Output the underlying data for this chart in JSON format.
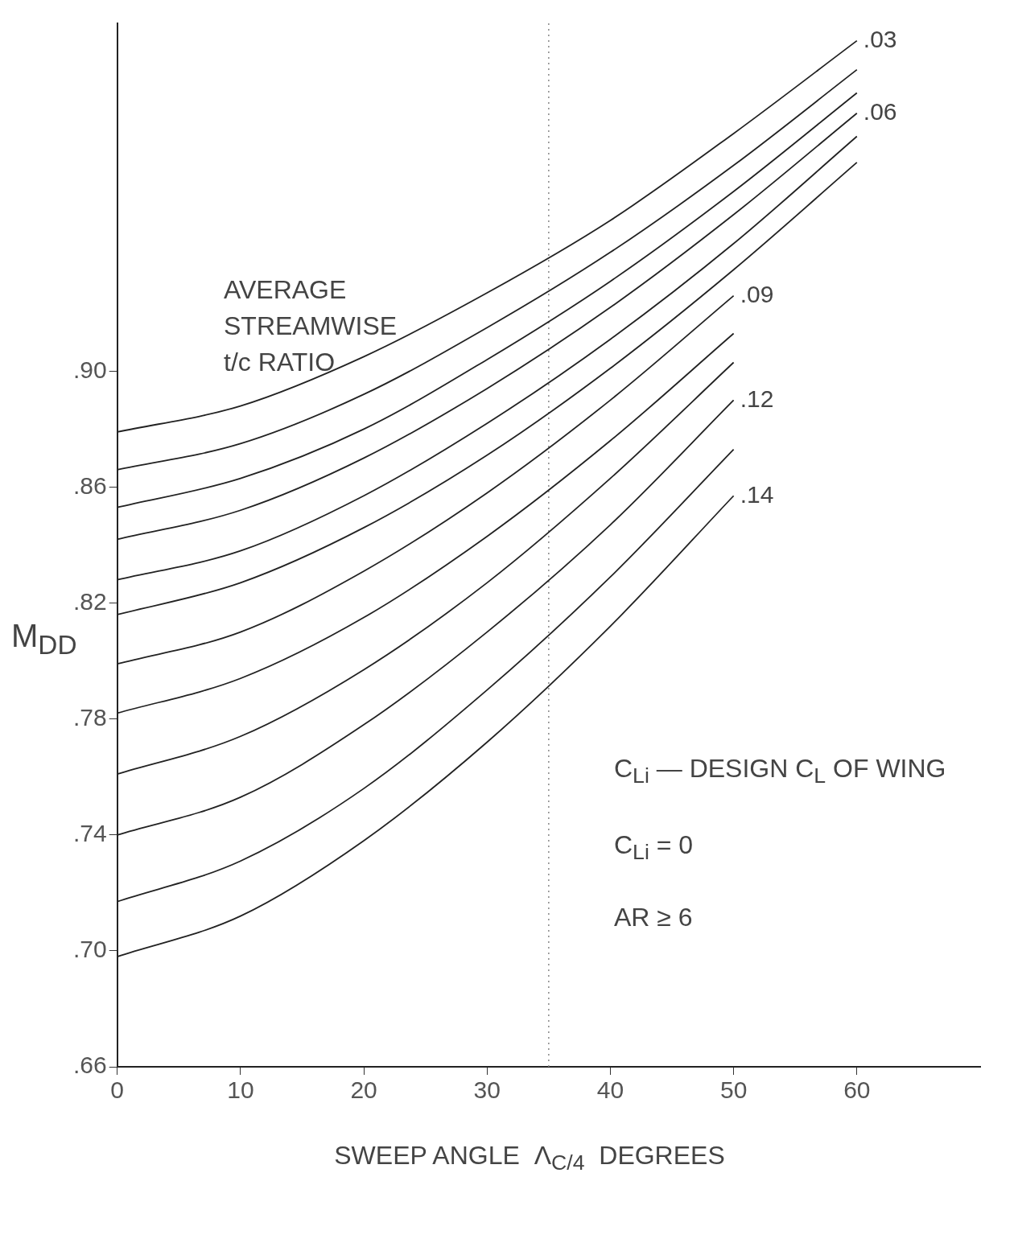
{
  "chart_data": {
    "type": "line",
    "xlabel": "SWEEP ANGLE  Λ$_{C/4}$  DEGREES",
    "ylabel": "M$_{DD}$",
    "x": [
      0,
      10,
      20,
      30,
      40,
      50,
      60
    ],
    "xlim": [
      0,
      70
    ],
    "xticks": [
      0,
      10,
      20,
      30,
      40,
      50,
      60
    ],
    "ylim": [
      0.66,
      1.02
    ],
    "yticks": [
      {
        "value": 0.66,
        "label": ".66"
      },
      {
        "value": 0.7,
        "label": ".70"
      },
      {
        "value": 0.74,
        "label": ".74"
      },
      {
        "value": 0.78,
        "label": ".78"
      },
      {
        "value": 0.82,
        "label": ".82"
      },
      {
        "value": 0.86,
        "label": ".86"
      },
      {
        "value": 0.9,
        "label": ".90"
      }
    ],
    "grid": false,
    "legend": false,
    "marker": "none",
    "line_style": "solid",
    "series": [
      {
        "name": ".03",
        "color": "#222222",
        "values": [
          0.879,
          0.888,
          0.905,
          0.927,
          0.952,
          0.982,
          1.014
        ]
      },
      {
        "color": "#222222",
        "values": [
          0.866,
          0.875,
          0.892,
          0.915,
          0.941,
          0.971,
          1.004
        ]
      },
      {
        "color": "#222222",
        "values": [
          0.853,
          0.863,
          0.88,
          0.904,
          0.931,
          0.962,
          0.996
        ]
      },
      {
        "name": ".06",
        "color": "#222222",
        "values": [
          0.842,
          0.852,
          0.87,
          0.894,
          0.922,
          0.954,
          0.989
        ]
      },
      {
        "color": "#222222",
        "values": [
          0.828,
          0.838,
          0.857,
          0.882,
          0.911,
          0.944,
          0.981
        ]
      },
      {
        "color": "#222222",
        "values": [
          0.816,
          0.827,
          0.846,
          0.871,
          0.901,
          0.935,
          0.972
        ]
      },
      {
        "name": ".09",
        "color": "#222222",
        "values": [
          0.799,
          0.81,
          0.831,
          0.858,
          0.89,
          0.926,
          null
        ]
      },
      {
        "color": "#222222",
        "values": [
          0.782,
          0.794,
          0.815,
          0.843,
          0.876,
          0.913,
          null
        ]
      },
      {
        "color": "#222222",
        "values": [
          0.761,
          0.774,
          0.797,
          0.827,
          0.863,
          0.903,
          null
        ]
      },
      {
        "name": ".12",
        "color": "#222222",
        "values": [
          0.74,
          0.753,
          0.778,
          0.81,
          0.847,
          0.89,
          null
        ]
      },
      {
        "color": "#222222",
        "values": [
          0.717,
          0.731,
          0.756,
          0.79,
          0.829,
          0.873,
          null
        ]
      },
      {
        "name": ".14",
        "color": "#222222",
        "values": [
          0.698,
          0.712,
          0.738,
          0.772,
          0.812,
          0.857,
          null
        ]
      }
    ],
    "ref_lines": [
      {
        "axis": "x",
        "value": 35,
        "color": "#888888",
        "line_style": "dotted"
      }
    ],
    "annotations": [
      "AVERAGE STREAMWISE t/c RATIO",
      "C$_{Li}$ — DESIGN C$_{L}$ OF WING",
      "C$_{Li}$ = 0",
      "AR ≥ 6"
    ]
  }
}
